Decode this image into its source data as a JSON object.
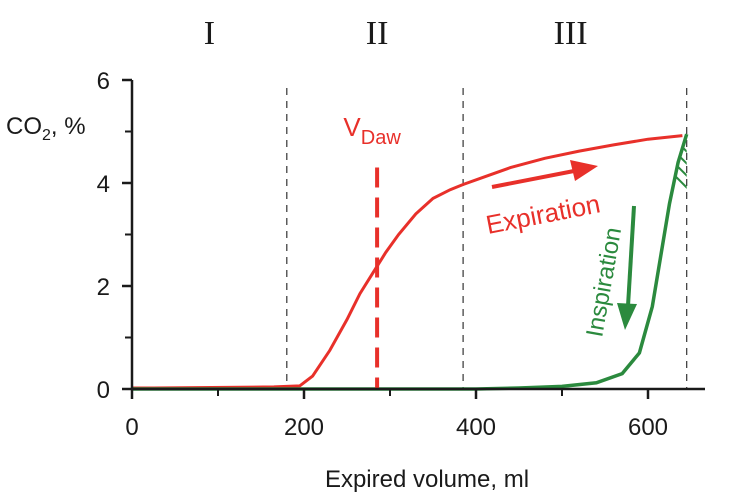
{
  "chart_data": {
    "type": "line",
    "title": "",
    "xlabel": "Expired volume, ml",
    "ylabel": "CO",
    "ylabel_sub": "2",
    "ylabel_suffix": ", %",
    "xlim": [
      0,
      700
    ],
    "ylim": [
      0,
      6
    ],
    "xticks": [
      0,
      200,
      400,
      600
    ],
    "yticks": [
      0,
      2,
      4,
      6
    ],
    "grid": false,
    "phases": [
      {
        "label": "I",
        "x_center": 90
      },
      {
        "label": "II",
        "x_center": 285
      },
      {
        "label": "III",
        "x_center": 510
      }
    ],
    "phase_boundaries": [
      180,
      385,
      645
    ],
    "vdaw": {
      "x": 285,
      "label": "V",
      "label_sub": "Daw",
      "y_top": 4.3
    },
    "series": [
      {
        "name": "Expiration",
        "color": "#e8302a",
        "x": [
          0,
          25,
          165,
          195,
          210,
          230,
          250,
          265,
          280,
          295,
          310,
          330,
          350,
          370,
          385,
          410,
          440,
          480,
          520,
          560,
          600,
          640
        ],
        "y": [
          0.02,
          0.02,
          0.04,
          0.06,
          0.25,
          0.75,
          1.35,
          1.85,
          2.25,
          2.65,
          3.0,
          3.4,
          3.7,
          3.87,
          3.97,
          4.12,
          4.3,
          4.48,
          4.62,
          4.74,
          4.85,
          4.92
        ]
      },
      {
        "name": "Inspiration",
        "color": "#2b8a3e",
        "x": [
          0,
          100,
          200,
          300,
          400,
          450,
          500,
          540,
          570,
          590,
          605,
          615,
          625,
          635,
          645
        ],
        "y": [
          0.0,
          0.0,
          0.0,
          0.0,
          0.0,
          0.02,
          0.05,
          0.12,
          0.3,
          0.7,
          1.6,
          2.6,
          3.6,
          4.4,
          4.95
        ]
      }
    ]
  }
}
